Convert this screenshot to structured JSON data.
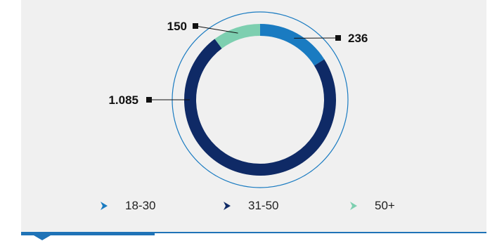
{
  "chart_data": {
    "type": "donut",
    "title": "",
    "categories": [
      "18-30",
      "31-50",
      "50+"
    ],
    "values": [
      236,
      1085,
      150
    ],
    "labels": [
      "236",
      "1.085",
      "150"
    ],
    "colors": [
      "#1a7bc1",
      "#0f2a66",
      "#7dcfb0"
    ],
    "legend_placement": "bottom"
  },
  "legend": [
    {
      "label": "18-30",
      "color": "#1a7bc1"
    },
    {
      "label": "31-50",
      "color": "#0f2a66"
    },
    {
      "label": "50+",
      "color": "#7dcfb0"
    }
  ]
}
